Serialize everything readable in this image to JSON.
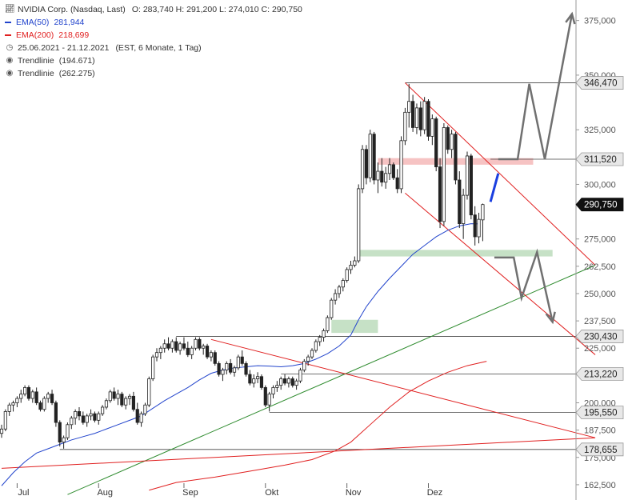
{
  "legend": {
    "title": "NVIDIA Corp. (Nasdaq, Last)",
    "ohlc": "O: 283,740   H: 291,200   L: 274,010   C: 290,750",
    "ema50_label": "EMA(50)",
    "ema50_value": "281,944",
    "ema200_label": "EMA(200)",
    "ema200_value": "218,699",
    "range": "25.06.2021 - 21.12.2021",
    "range_note": "(EST, 6 Monate, 1 Tag)",
    "trend1_label": "Trendlinie",
    "trend1_value": "(194.671)",
    "trend2_label": "Trendlinie",
    "trend2_value": "(262.275)"
  },
  "chart_data": {
    "type": "candlestick",
    "instrument": "NVIDIA Corp. (Nasdaq, Last)",
    "period": "25.06.2021 - 21.12.2021",
    "last": {
      "open": 283.74,
      "high": 291.2,
      "low": 274.01,
      "close": 290.75
    },
    "x_ticks": [
      {
        "label": "Jul",
        "day": 4
      },
      {
        "label": "Aug",
        "day": 25
      },
      {
        "label": "Sep",
        "day": 47
      },
      {
        "label": "Okt",
        "day": 68
      },
      {
        "label": "Nov",
        "day": 89
      },
      {
        "label": "Dez",
        "day": 110
      }
    ],
    "y_range": [
      161,
      380
    ],
    "y_ticks": [
      {
        "label": "375,000",
        "value": 375
      },
      {
        "label": "350,000",
        "value": 350
      },
      {
        "label": "325,000",
        "value": 325
      },
      {
        "label": "300,000",
        "value": 300
      },
      {
        "label": "275,000",
        "value": 275
      },
      {
        "label": "262,500",
        "value": 262.5
      },
      {
        "label": "250,000",
        "value": 250
      },
      {
        "label": "237,500",
        "value": 237.5
      },
      {
        "label": "225,000",
        "value": 225
      },
      {
        "label": "200,000",
        "value": 200
      },
      {
        "label": "187,500",
        "value": 187.5
      },
      {
        "label": "175,000",
        "value": 175
      },
      {
        "label": "162,500",
        "value": 162.5
      }
    ],
    "price_badges": [
      {
        "label": "346,470",
        "value": 346.47,
        "dark": false
      },
      {
        "label": "311,520",
        "value": 311.52,
        "dark": false
      },
      {
        "label": "290,750",
        "value": 290.75,
        "dark": true
      },
      {
        "label": "230,430",
        "value": 230.43,
        "dark": false
      },
      {
        "label": "213,220",
        "value": 213.22,
        "dark": false
      },
      {
        "label": "195,550",
        "value": 195.55,
        "dark": false
      },
      {
        "label": "178,655",
        "value": 178.655,
        "dark": false
      }
    ],
    "horizontal_levels": [
      {
        "value": 346.47,
        "from_day": 104
      },
      {
        "value": 311.52,
        "from_day": 126
      },
      {
        "value": 230.43,
        "from_day": 45
      },
      {
        "value": 213.22,
        "from_day": 72
      },
      {
        "value": 195.55,
        "from_day": 69
      },
      {
        "value": 178.655,
        "from_day": 15
      }
    ],
    "zones": [
      {
        "color": "#f4b8b8",
        "from_day": 97,
        "to_day": 137,
        "low": 309,
        "high": 312
      },
      {
        "color": "#bcdcbc",
        "from_day": 92,
        "to_day": 142,
        "low": 267,
        "high": 270
      },
      {
        "color": "#bcdcbc",
        "from_day": 85,
        "to_day": 97,
        "low": 232,
        "high": 238
      }
    ],
    "trendlines": [
      {
        "name": "Trendlinie",
        "label": "(194.671)",
        "color": "#2e8b2e",
        "points": [
          [
            17,
            158
          ],
          [
            153,
            263
          ]
        ]
      },
      {
        "name": "Trendlinie",
        "label": "(262.275)",
        "color": "#e02020",
        "points": [
          [
            0,
            170
          ],
          [
            153,
            184
          ]
        ]
      },
      {
        "color": "#e02020",
        "points": [
          [
            54,
            229
          ],
          [
            153,
            184
          ]
        ]
      },
      {
        "color": "#e02020",
        "points": [
          [
            104,
            346.5
          ],
          [
            153,
            263
          ]
        ]
      },
      {
        "color": "#e02020",
        "points": [
          [
            104,
            296
          ],
          [
            153,
            222
          ]
        ]
      }
    ],
    "projections": [
      {
        "color": "#707070",
        "points": [
          [
            128,
            311.5
          ],
          [
            133,
            311.5
          ],
          [
            136,
            346
          ],
          [
            140,
            311.5
          ],
          [
            147,
            378
          ]
        ]
      },
      {
        "color": "#707070",
        "points": [
          [
            127,
            266.5
          ],
          [
            132,
            266.5
          ],
          [
            134,
            248
          ],
          [
            138,
            269
          ],
          [
            142,
            237
          ]
        ]
      },
      {
        "color": "#1a3fe0",
        "points": [
          [
            126,
            292
          ],
          [
            128,
            305
          ]
        ]
      }
    ],
    "ema50": {
      "label": "EMA(50)",
      "color": "#2244cc",
      "points": [
        [
          0,
          162
        ],
        [
          3,
          168
        ],
        [
          6,
          173
        ],
        [
          9,
          177
        ],
        [
          12,
          179
        ],
        [
          15,
          181
        ],
        [
          18,
          183
        ],
        [
          21,
          184.5
        ],
        [
          24,
          186
        ],
        [
          27,
          188
        ],
        [
          30,
          190
        ],
        [
          33,
          192
        ],
        [
          36,
          194
        ],
        [
          39,
          197.5
        ],
        [
          42,
          201
        ],
        [
          45,
          204
        ],
        [
          48,
          207
        ],
        [
          51,
          210.5
        ],
        [
          54,
          213.5
        ],
        [
          57,
          215
        ],
        [
          60,
          216
        ],
        [
          63,
          216.5
        ],
        [
          66,
          217
        ],
        [
          69,
          216.8
        ],
        [
          72,
          216.5
        ],
        [
          75,
          217
        ],
        [
          78,
          218
        ],
        [
          81,
          220
        ],
        [
          84,
          222.5
        ],
        [
          87,
          226
        ],
        [
          90,
          231
        ],
        [
          92,
          238
        ],
        [
          94,
          244
        ],
        [
          97,
          251
        ],
        [
          100,
          257
        ],
        [
          103,
          262.5
        ],
        [
          106,
          268
        ],
        [
          109,
          272
        ],
        [
          112,
          276
        ],
        [
          115,
          279
        ],
        [
          118,
          281
        ],
        [
          121,
          282
        ],
        [
          123,
          281.9
        ]
      ]
    },
    "ema200": {
      "label": "EMA(200)",
      "color": "#e02020",
      "points": [
        [
          38,
          160
        ],
        [
          45,
          163.5
        ],
        [
          55,
          166
        ],
        [
          65,
          169
        ],
        [
          73,
          171.5
        ],
        [
          80,
          174
        ],
        [
          86,
          178
        ],
        [
          90,
          182
        ],
        [
          95,
          190
        ],
        [
          100,
          198
        ],
        [
          105,
          205
        ],
        [
          110,
          210
        ],
        [
          115,
          214
        ],
        [
          120,
          217
        ],
        [
          125,
          219
        ]
      ]
    },
    "candles": [
      {
        "o": 186,
        "h": 190,
        "l": 184,
        "c": 188
      },
      {
        "o": 188,
        "h": 197,
        "l": 187,
        "c": 196
      },
      {
        "o": 196,
        "h": 200,
        "l": 194,
        "c": 199
      },
      {
        "o": 199,
        "h": 201,
        "l": 196,
        "c": 200
      },
      {
        "o": 200,
        "h": 203,
        "l": 198,
        "c": 202
      },
      {
        "o": 202,
        "h": 206,
        "l": 200,
        "c": 204
      },
      {
        "o": 204,
        "h": 208,
        "l": 203,
        "c": 207
      },
      {
        "o": 207,
        "h": 208,
        "l": 201,
        "c": 202
      },
      {
        "o": 202,
        "h": 206,
        "l": 200,
        "c": 205
      },
      {
        "o": 205,
        "h": 207,
        "l": 199,
        "c": 200
      },
      {
        "o": 200,
        "h": 201,
        "l": 196,
        "c": 197
      },
      {
        "o": 197,
        "h": 203,
        "l": 196,
        "c": 202
      },
      {
        "o": 202,
        "h": 205,
        "l": 200,
        "c": 204
      },
      {
        "o": 204,
        "h": 206,
        "l": 199,
        "c": 200
      },
      {
        "o": 200,
        "h": 201,
        "l": 189,
        "c": 191
      },
      {
        "o": 191,
        "h": 192,
        "l": 180,
        "c": 182
      },
      {
        "o": 182,
        "h": 185,
        "l": 179,
        "c": 184
      },
      {
        "o": 184,
        "h": 191,
        "l": 183,
        "c": 190
      },
      {
        "o": 190,
        "h": 194,
        "l": 188,
        "c": 193
      },
      {
        "o": 193,
        "h": 197,
        "l": 190,
        "c": 196
      },
      {
        "o": 196,
        "h": 198,
        "l": 192,
        "c": 194
      },
      {
        "o": 194,
        "h": 196,
        "l": 190,
        "c": 191
      },
      {
        "o": 191,
        "h": 195,
        "l": 189,
        "c": 194
      },
      {
        "o": 194,
        "h": 197,
        "l": 192,
        "c": 195
      },
      {
        "o": 195,
        "h": 196,
        "l": 191,
        "c": 192
      },
      {
        "o": 192,
        "h": 196,
        "l": 190,
        "c": 195
      },
      {
        "o": 195,
        "h": 199,
        "l": 194,
        "c": 198
      },
      {
        "o": 198,
        "h": 202,
        "l": 197,
        "c": 201
      },
      {
        "o": 201,
        "h": 206,
        "l": 200,
        "c": 205
      },
      {
        "o": 205,
        "h": 207,
        "l": 201,
        "c": 202
      },
      {
        "o": 202,
        "h": 206,
        "l": 199,
        "c": 204
      },
      {
        "o": 204,
        "h": 205,
        "l": 198,
        "c": 199
      },
      {
        "o": 199,
        "h": 203,
        "l": 197,
        "c": 202
      },
      {
        "o": 202,
        "h": 204,
        "l": 199,
        "c": 203
      },
      {
        "o": 203,
        "h": 205,
        "l": 196,
        "c": 197
      },
      {
        "o": 197,
        "h": 200,
        "l": 190,
        "c": 191
      },
      {
        "o": 191,
        "h": 196,
        "l": 189,
        "c": 195
      },
      {
        "o": 195,
        "h": 200,
        "l": 194,
        "c": 199
      },
      {
        "o": 199,
        "h": 212,
        "l": 198,
        "c": 211
      },
      {
        "o": 211,
        "h": 222,
        "l": 210,
        "c": 221
      },
      {
        "o": 221,
        "h": 225,
        "l": 219,
        "c": 223
      },
      {
        "o": 223,
        "h": 226,
        "l": 220,
        "c": 225
      },
      {
        "o": 225,
        "h": 229,
        "l": 223,
        "c": 227
      },
      {
        "o": 227,
        "h": 230,
        "l": 224,
        "c": 225
      },
      {
        "o": 225,
        "h": 229,
        "l": 223,
        "c": 228
      },
      {
        "o": 228,
        "h": 230,
        "l": 223,
        "c": 224
      },
      {
        "o": 224,
        "h": 228,
        "l": 222,
        "c": 227
      },
      {
        "o": 227,
        "h": 230,
        "l": 224,
        "c": 225
      },
      {
        "o": 225,
        "h": 228,
        "l": 221,
        "c": 222
      },
      {
        "o": 222,
        "h": 226,
        "l": 220,
        "c": 225
      },
      {
        "o": 225,
        "h": 230,
        "l": 224,
        "c": 229
      },
      {
        "o": 229,
        "h": 230,
        "l": 224,
        "c": 225
      },
      {
        "o": 225,
        "h": 227,
        "l": 222,
        "c": 226
      },
      {
        "o": 226,
        "h": 227,
        "l": 220,
        "c": 221
      },
      {
        "o": 221,
        "h": 224,
        "l": 219,
        "c": 223
      },
      {
        "o": 223,
        "h": 224,
        "l": 217,
        "c": 218
      },
      {
        "o": 218,
        "h": 219,
        "l": 212,
        "c": 213
      },
      {
        "o": 213,
        "h": 216,
        "l": 210,
        "c": 215
      },
      {
        "o": 215,
        "h": 219,
        "l": 213,
        "c": 218
      },
      {
        "o": 218,
        "h": 220,
        "l": 213,
        "c": 214
      },
      {
        "o": 214,
        "h": 217,
        "l": 212,
        "c": 216
      },
      {
        "o": 216,
        "h": 222,
        "l": 215,
        "c": 221
      },
      {
        "o": 221,
        "h": 224,
        "l": 217,
        "c": 218
      },
      {
        "o": 218,
        "h": 219,
        "l": 212,
        "c": 213
      },
      {
        "o": 213,
        "h": 215,
        "l": 208,
        "c": 209
      },
      {
        "o": 209,
        "h": 213,
        "l": 207,
        "c": 211
      },
      {
        "o": 211,
        "h": 214,
        "l": 209,
        "c": 212
      },
      {
        "o": 212,
        "h": 213,
        "l": 206,
        "c": 207
      },
      {
        "o": 207,
        "h": 208,
        "l": 198,
        "c": 199
      },
      {
        "o": 199,
        "h": 205,
        "l": 196,
        "c": 204
      },
      {
        "o": 204,
        "h": 208,
        "l": 202,
        "c": 207
      },
      {
        "o": 207,
        "h": 210,
        "l": 205,
        "c": 208
      },
      {
        "o": 208,
        "h": 212,
        "l": 206,
        "c": 211
      },
      {
        "o": 211,
        "h": 213,
        "l": 208,
        "c": 209
      },
      {
        "o": 209,
        "h": 212,
        "l": 207,
        "c": 211
      },
      {
        "o": 211,
        "h": 212,
        "l": 207,
        "c": 208
      },
      {
        "o": 208,
        "h": 211,
        "l": 206,
        "c": 210
      },
      {
        "o": 210,
        "h": 216,
        "l": 209,
        "c": 215
      },
      {
        "o": 215,
        "h": 220,
        "l": 214,
        "c": 219
      },
      {
        "o": 219,
        "h": 222,
        "l": 217,
        "c": 221
      },
      {
        "o": 221,
        "h": 225,
        "l": 220,
        "c": 224
      },
      {
        "o": 224,
        "h": 229,
        "l": 223,
        "c": 228
      },
      {
        "o": 228,
        "h": 231,
        "l": 226,
        "c": 230
      },
      {
        "o": 230,
        "h": 234,
        "l": 228,
        "c": 233
      },
      {
        "o": 233,
        "h": 240,
        "l": 232,
        "c": 239
      },
      {
        "o": 239,
        "h": 248,
        "l": 238,
        "c": 247
      },
      {
        "o": 247,
        "h": 252,
        "l": 245,
        "c": 250
      },
      {
        "o": 250,
        "h": 254,
        "l": 248,
        "c": 253
      },
      {
        "o": 253,
        "h": 257,
        "l": 251,
        "c": 256
      },
      {
        "o": 256,
        "h": 262,
        "l": 255,
        "c": 261
      },
      {
        "o": 261,
        "h": 265,
        "l": 259,
        "c": 263
      },
      {
        "o": 263,
        "h": 267,
        "l": 262,
        "c": 265
      },
      {
        "o": 265,
        "h": 300,
        "l": 264,
        "c": 298
      },
      {
        "o": 298,
        "h": 318,
        "l": 296,
        "c": 316
      },
      {
        "o": 316,
        "h": 318,
        "l": 300,
        "c": 303
      },
      {
        "o": 303,
        "h": 325,
        "l": 301,
        "c": 323
      },
      {
        "o": 323,
        "h": 324,
        "l": 300,
        "c": 302
      },
      {
        "o": 302,
        "h": 310,
        "l": 296,
        "c": 306
      },
      {
        "o": 306,
        "h": 312,
        "l": 299,
        "c": 301
      },
      {
        "o": 301,
        "h": 308,
        "l": 298,
        "c": 305
      },
      {
        "o": 305,
        "h": 312,
        "l": 302,
        "c": 309
      },
      {
        "o": 309,
        "h": 310,
        "l": 302,
        "c": 303
      },
      {
        "o": 303,
        "h": 307,
        "l": 296,
        "c": 298
      },
      {
        "o": 298,
        "h": 322,
        "l": 296,
        "c": 320
      },
      {
        "o": 320,
        "h": 335,
        "l": 318,
        "c": 333
      },
      {
        "o": 333,
        "h": 346,
        "l": 326,
        "c": 338
      },
      {
        "o": 338,
        "h": 341,
        "l": 324,
        "c": 326
      },
      {
        "o": 326,
        "h": 337,
        "l": 323,
        "c": 335
      },
      {
        "o": 335,
        "h": 338,
        "l": 322,
        "c": 325
      },
      {
        "o": 325,
        "h": 340,
        "l": 323,
        "c": 338
      },
      {
        "o": 338,
        "h": 339,
        "l": 320,
        "c": 322
      },
      {
        "o": 322,
        "h": 332,
        "l": 318,
        "c": 330
      },
      {
        "o": 330,
        "h": 331,
        "l": 306,
        "c": 308
      },
      {
        "o": 308,
        "h": 312,
        "l": 280,
        "c": 283
      },
      {
        "o": 283,
        "h": 328,
        "l": 281,
        "c": 326
      },
      {
        "o": 326,
        "h": 327,
        "l": 314,
        "c": 316
      },
      {
        "o": 316,
        "h": 325,
        "l": 312,
        "c": 323
      },
      {
        "o": 323,
        "h": 324,
        "l": 300,
        "c": 302
      },
      {
        "o": 302,
        "h": 306,
        "l": 280,
        "c": 282
      },
      {
        "o": 282,
        "h": 298,
        "l": 275,
        "c": 295
      },
      {
        "o": 295,
        "h": 315,
        "l": 293,
        "c": 313
      },
      {
        "o": 313,
        "h": 314,
        "l": 284,
        "c": 286
      },
      {
        "o": 286,
        "h": 290,
        "l": 272,
        "c": 276
      },
      {
        "o": 276,
        "h": 287,
        "l": 273,
        "c": 284
      },
      {
        "o": 283.74,
        "h": 291.2,
        "l": 274.01,
        "c": 290.75
      }
    ]
  }
}
